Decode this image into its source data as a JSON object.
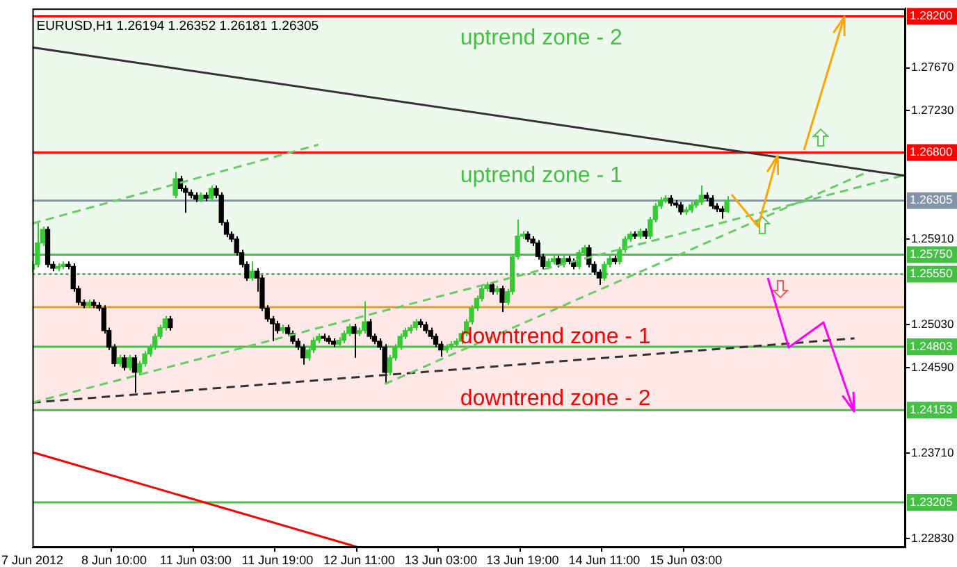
{
  "chart_data": {
    "type": "candlestick",
    "title": "EURUSD,H1 1.26194 1.26352 1.26181 1.26305",
    "categories": [
      "7 Jun 2012",
      null,
      null,
      null,
      null,
      null,
      null,
      null,
      null,
      null,
      null,
      null,
      null,
      null,
      null,
      null,
      "8 Jun 10:00",
      null,
      null,
      null,
      null,
      null,
      null,
      null,
      null,
      null,
      null,
      null,
      null,
      null,
      null,
      null,
      "11 Jun 03:00",
      null,
      null,
      null,
      null,
      null,
      null,
      null,
      null,
      null,
      null,
      null,
      null,
      null,
      null,
      null,
      "11 Jun 19:00",
      null,
      null,
      null,
      null,
      null,
      null,
      null,
      null,
      null,
      null,
      null,
      null,
      null,
      null,
      null,
      "12 Jun 11:00",
      null,
      null,
      null,
      null,
      null,
      null,
      null,
      null,
      null,
      null,
      null,
      null,
      null,
      null,
      null,
      "13 Jun 03:00",
      null,
      null,
      null,
      null,
      null,
      null,
      null,
      null,
      null,
      null,
      null,
      null,
      null,
      null,
      null,
      "13 Jun 19:00",
      null,
      null,
      null,
      null,
      null,
      null,
      null,
      null,
      null,
      null,
      null,
      null,
      null,
      null,
      null,
      "14 Jun 11:00",
      null,
      null,
      null,
      null,
      null,
      null,
      null,
      null,
      null,
      null,
      null,
      null,
      null,
      null,
      null,
      "15 Jun 03:00",
      null,
      null,
      null,
      null,
      null,
      null,
      null,
      null,
      null,
      null,
      null,
      null,
      null,
      null,
      null,
      null,
      null,
      null,
      null,
      null,
      null,
      null,
      null,
      null,
      null,
      null,
      null,
      null,
      null,
      null,
      null,
      null,
      null,
      null,
      null,
      null,
      null,
      null,
      null,
      null,
      null,
      null,
      null
    ],
    "ohlc": [
      [
        1.256,
        1.2568,
        1.2557,
        1.2565
      ],
      [
        1.2565,
        1.2608,
        1.2562,
        1.2587
      ],
      [
        1.2587,
        1.2604,
        1.2584,
        1.2601
      ],
      [
        1.2601,
        1.2604,
        1.2562,
        1.2565
      ],
      [
        1.2565,
        1.2568,
        1.2558,
        1.2561
      ],
      [
        1.2561,
        1.2566,
        1.2558,
        1.2563
      ],
      [
        1.2563,
        1.2568,
        1.256,
        1.2565
      ],
      [
        1.2565,
        1.2568,
        1.256,
        1.2563
      ],
      [
        1.2563,
        1.2566,
        1.2537,
        1.254
      ],
      [
        1.254,
        1.2543,
        1.2523,
        1.2526
      ],
      [
        1.2526,
        1.2529,
        1.252,
        1.2523
      ],
      [
        1.2523,
        1.2529,
        1.252,
        1.2526
      ],
      [
        1.2526,
        1.2529,
        1.252,
        1.2523
      ],
      [
        1.2523,
        1.2526,
        1.2517,
        1.252
      ],
      [
        1.252,
        1.2523,
        1.2494,
        1.2497
      ],
      [
        1.2497,
        1.25,
        1.2477,
        1.248
      ],
      [
        1.248,
        1.2483,
        1.246,
        1.2463
      ],
      [
        1.2463,
        1.2472,
        1.246,
        1.2469
      ],
      [
        1.2469,
        1.2472,
        1.2456,
        1.2459
      ],
      [
        1.2459,
        1.2472,
        1.2456,
        1.2469
      ],
      [
        1.2469,
        1.2472,
        1.2433,
        1.2454
      ],
      [
        1.2454,
        1.2466,
        1.2451,
        1.2463
      ],
      [
        1.2463,
        1.2476,
        1.246,
        1.2473
      ],
      [
        1.2473,
        1.2483,
        1.247,
        1.248
      ],
      [
        1.248,
        1.2494,
        1.2477,
        1.2491
      ],
      [
        1.2491,
        1.2503,
        1.2488,
        1.25
      ],
      [
        1.25,
        1.2512,
        1.2497,
        1.2509
      ],
      [
        1.2509,
        1.2512,
        1.2497,
        1.25
      ],
      [
        1.2636,
        1.266,
        1.2633,
        1.2653
      ],
      [
        1.2653,
        1.2656,
        1.264,
        1.2643
      ],
      [
        1.2643,
        1.2646,
        1.2618,
        1.2639
      ],
      [
        1.2639,
        1.2642,
        1.2633,
        1.2636
      ],
      [
        1.2636,
        1.2639,
        1.2629,
        1.2632
      ],
      [
        1.2632,
        1.2639,
        1.2629,
        1.2636
      ],
      [
        1.2636,
        1.2639,
        1.263,
        1.2633
      ],
      [
        1.2633,
        1.2646,
        1.263,
        1.2643
      ],
      [
        1.2643,
        1.2646,
        1.2633,
        1.2636
      ],
      [
        1.2636,
        1.2639,
        1.2605,
        1.2608
      ],
      [
        1.2608,
        1.2611,
        1.2593,
        1.2596
      ],
      [
        1.2596,
        1.2599,
        1.2588,
        1.2591
      ],
      [
        1.2591,
        1.2594,
        1.2574,
        1.2577
      ],
      [
        1.2577,
        1.258,
        1.2562,
        1.2565
      ],
      [
        1.2565,
        1.2568,
        1.2548,
        1.2551
      ],
      [
        1.2551,
        1.2568,
        1.2548,
        1.2558
      ],
      [
        1.2558,
        1.2561,
        1.2537,
        1.2551
      ],
      [
        1.2551,
        1.2554,
        1.2517,
        1.252
      ],
      [
        1.252,
        1.2523,
        1.2506,
        1.2509
      ],
      [
        1.2509,
        1.2512,
        1.2486,
        1.2504
      ],
      [
        1.2504,
        1.2507,
        1.2494,
        1.2497
      ],
      [
        1.2497,
        1.2503,
        1.2494,
        1.25
      ],
      [
        1.25,
        1.2503,
        1.2491,
        1.2494
      ],
      [
        1.2494,
        1.2497,
        1.2483,
        1.2486
      ],
      [
        1.2486,
        1.2489,
        1.2477,
        1.248
      ],
      [
        1.248,
        1.2483,
        1.2462,
        1.2469
      ],
      [
        1.2469,
        1.248,
        1.2466,
        1.2477
      ],
      [
        1.2477,
        1.249,
        1.2474,
        1.2487
      ],
      [
        1.2487,
        1.2494,
        1.2484,
        1.2491
      ],
      [
        1.2491,
        1.2494,
        1.2486,
        1.2489
      ],
      [
        1.2489,
        1.2492,
        1.2483,
        1.2486
      ],
      [
        1.2486,
        1.2489,
        1.248,
        1.2483
      ],
      [
        1.2483,
        1.249,
        1.248,
        1.2487
      ],
      [
        1.2487,
        1.2497,
        1.2484,
        1.2494
      ],
      [
        1.2494,
        1.2504,
        1.2491,
        1.2501
      ],
      [
        1.2501,
        1.2504,
        1.2469,
        1.2494
      ],
      [
        1.2494,
        1.25,
        1.2491,
        1.2497
      ],
      [
        1.2497,
        1.2527,
        1.2494,
        1.2506
      ],
      [
        1.2506,
        1.2509,
        1.2488,
        1.2491
      ],
      [
        1.2491,
        1.2494,
        1.2483,
        1.2486
      ],
      [
        1.2486,
        1.2489,
        1.2477,
        1.248
      ],
      [
        1.248,
        1.2483,
        1.2442,
        1.2454
      ],
      [
        1.2454,
        1.2472,
        1.2451,
        1.2469
      ],
      [
        1.2469,
        1.2483,
        1.2466,
        1.248
      ],
      [
        1.248,
        1.2494,
        1.2477,
        1.2491
      ],
      [
        1.2491,
        1.25,
        1.2488,
        1.2497
      ],
      [
        1.2497,
        1.2503,
        1.2494,
        1.25
      ],
      [
        1.25,
        1.2509,
        1.2497,
        1.2506
      ],
      [
        1.2506,
        1.2509,
        1.25,
        1.2503
      ],
      [
        1.2503,
        1.2506,
        1.2494,
        1.2497
      ],
      [
        1.2497,
        1.25,
        1.2488,
        1.2491
      ],
      [
        1.2491,
        1.2494,
        1.248,
        1.2483
      ],
      [
        1.2483,
        1.2486,
        1.247,
        1.2477
      ],
      [
        1.2477,
        1.2483,
        1.2474,
        1.248
      ],
      [
        1.248,
        1.2486,
        1.2477,
        1.2483
      ],
      [
        1.2483,
        1.2489,
        1.248,
        1.2486
      ],
      [
        1.2486,
        1.2497,
        1.2483,
        1.2494
      ],
      [
        1.2494,
        1.2509,
        1.2491,
        1.2506
      ],
      [
        1.2506,
        1.2523,
        1.2503,
        1.252
      ],
      [
        1.252,
        1.2533,
        1.2517,
        1.253
      ],
      [
        1.253,
        1.2543,
        1.2527,
        1.254
      ],
      [
        1.254,
        1.2547,
        1.2537,
        1.2544
      ],
      [
        1.2544,
        1.2547,
        1.2534,
        1.2537
      ],
      [
        1.2537,
        1.2543,
        1.2534,
        1.254
      ],
      [
        1.254,
        1.2543,
        1.2516,
        1.2526
      ],
      [
        1.2526,
        1.254,
        1.2523,
        1.2537
      ],
      [
        1.2537,
        1.2576,
        1.2534,
        1.2573
      ],
      [
        1.2573,
        1.2611,
        1.257,
        1.2594
      ],
      [
        1.2594,
        1.2599,
        1.2591,
        1.2596
      ],
      [
        1.2596,
        1.2599,
        1.2588,
        1.2591
      ],
      [
        1.2591,
        1.2594,
        1.2584,
        1.2587
      ],
      [
        1.2587,
        1.259,
        1.257,
        1.2573
      ],
      [
        1.2573,
        1.2576,
        1.256,
        1.2563
      ],
      [
        1.2563,
        1.2571,
        1.256,
        1.2568
      ],
      [
        1.2568,
        1.2574,
        1.2565,
        1.2571
      ],
      [
        1.2571,
        1.2574,
        1.2562,
        1.2565
      ],
      [
        1.2565,
        1.2574,
        1.2562,
        1.2571
      ],
      [
        1.2571,
        1.2574,
        1.2565,
        1.2568
      ],
      [
        1.2568,
        1.2571,
        1.256,
        1.2563
      ],
      [
        1.2563,
        1.258,
        1.256,
        1.2577
      ],
      [
        1.2577,
        1.2585,
        1.2574,
        1.2582
      ],
      [
        1.2582,
        1.2585,
        1.2562,
        1.2565
      ],
      [
        1.2565,
        1.2568,
        1.2554,
        1.2557
      ],
      [
        1.2557,
        1.256,
        1.2544,
        1.2551
      ],
      [
        1.2551,
        1.2568,
        1.2548,
        1.2565
      ],
      [
        1.2565,
        1.2574,
        1.2562,
        1.2571
      ],
      [
        1.2571,
        1.2574,
        1.2565,
        1.2568
      ],
      [
        1.2568,
        1.2583,
        1.2565,
        1.258
      ],
      [
        1.258,
        1.2594,
        1.2577,
        1.2591
      ],
      [
        1.2591,
        1.2599,
        1.2588,
        1.2596
      ],
      [
        1.2596,
        1.2599,
        1.2591,
        1.2594
      ],
      [
        1.2594,
        1.2602,
        1.2591,
        1.2599
      ],
      [
        1.2599,
        1.2602,
        1.2591,
        1.2594
      ],
      [
        1.2594,
        1.2614,
        1.2591,
        1.2611
      ],
      [
        1.2611,
        1.2628,
        1.2608,
        1.2625
      ],
      [
        1.2625,
        1.2634,
        1.2622,
        1.2631
      ],
      [
        1.2631,
        1.2636,
        1.2628,
        1.2633
      ],
      [
        1.2633,
        1.2636,
        1.2625,
        1.2628
      ],
      [
        1.2628,
        1.2631,
        1.2623,
        1.2626
      ],
      [
        1.2626,
        1.2629,
        1.2616,
        1.2619
      ],
      [
        1.2619,
        1.2624,
        1.2616,
        1.2621
      ],
      [
        1.2621,
        1.2629,
        1.2618,
        1.2626
      ],
      [
        1.2626,
        1.2632,
        1.2623,
        1.2629
      ],
      [
        1.2629,
        1.2646,
        1.2626,
        1.2636
      ],
      [
        1.2636,
        1.2639,
        1.263,
        1.2633
      ],
      [
        1.2633,
        1.2636,
        1.2622,
        1.2625
      ],
      [
        1.2625,
        1.2628,
        1.2619,
        1.2622
      ],
      [
        1.2622,
        1.2625,
        1.2612,
        1.26194
      ],
      [
        1.26194,
        1.26352,
        1.26181,
        1.26305
      ],
      null,
      null,
      null,
      null,
      null,
      null,
      null,
      null,
      null,
      null,
      null,
      null,
      null,
      null,
      null,
      null,
      null,
      null,
      null,
      null,
      null,
      null,
      null,
      null,
      null,
      null,
      null,
      null,
      null,
      null,
      null,
      null,
      null,
      null,
      null
    ],
    "series": [
      {
        "type": "line",
        "color": "#333333",
        "line_style": "solid",
        "values": [
          1.2788,
          null,
          null,
          null,
          null,
          null,
          null,
          null,
          null,
          null,
          null,
          null,
          null,
          null,
          null,
          null,
          null,
          null,
          null,
          null,
          null,
          null,
          null,
          null,
          null,
          null,
          null,
          null,
          null,
          null,
          null,
          null,
          null,
          null,
          null,
          null,
          null,
          null,
          null,
          null,
          null,
          null,
          null,
          null,
          null,
          null,
          null,
          null,
          null,
          null,
          null,
          null,
          null,
          null,
          null,
          null,
          null,
          null,
          null,
          null,
          null,
          null,
          null,
          null,
          null,
          null,
          null,
          null,
          null,
          null,
          null,
          null,
          null,
          null,
          null,
          null,
          null,
          null,
          null,
          null,
          null,
          null,
          null,
          null,
          null,
          null,
          null,
          null,
          null,
          null,
          null,
          null,
          null,
          null,
          null,
          null,
          null,
          null,
          null,
          null,
          null,
          null,
          null,
          null,
          null,
          null,
          null,
          null,
          null,
          null,
          null,
          null,
          null,
          null,
          null,
          null,
          null,
          null,
          null,
          null,
          null,
          null,
          null,
          null,
          null,
          null,
          null,
          null,
          null,
          null,
          null,
          null,
          null,
          null,
          null,
          null,
          null,
          null,
          null,
          null,
          null,
          null,
          null,
          null,
          null,
          null,
          null,
          null,
          null,
          null,
          null,
          null,
          null,
          null,
          null,
          null,
          null,
          null,
          null,
          null,
          null,
          null,
          null,
          null,
          null,
          null,
          null,
          null,
          null,
          null,
          null,
          1.2656
        ]
      },
      {
        "type": "line",
        "color": "#66cc66",
        "line_style": "dashed",
        "values": [
          1.2607,
          null,
          null,
          null,
          null,
          null,
          null,
          null,
          null,
          null,
          null,
          null,
          null,
          null,
          null,
          null,
          null,
          null,
          null,
          null,
          null,
          null,
          null,
          null,
          null,
          null,
          null,
          null,
          null,
          null,
          null,
          null,
          null,
          null,
          null,
          null,
          null,
          null,
          null,
          null,
          null,
          null,
          null,
          null,
          null,
          null,
          null,
          null,
          null,
          null,
          null,
          null,
          null,
          null,
          null,
          null,
          1.2688,
          null,
          null,
          null,
          null,
          null,
          null,
          null,
          null,
          null,
          null,
          null,
          null,
          null,
          null,
          null,
          null,
          null,
          null,
          null,
          null,
          null,
          null,
          null,
          null,
          null,
          null,
          null,
          null,
          null,
          null,
          null,
          null,
          null,
          null,
          null,
          null,
          null,
          null,
          null,
          null,
          null,
          null,
          null,
          null,
          null,
          null,
          null,
          null,
          null,
          null,
          null,
          null,
          null,
          null,
          null,
          null,
          null,
          null,
          null,
          null,
          null,
          null,
          null,
          null,
          null,
          null,
          null,
          null,
          null,
          null,
          null,
          null,
          null,
          null,
          null,
          null,
          null,
          null,
          null,
          null,
          null,
          null,
          null,
          null,
          null,
          null,
          null,
          null,
          null,
          null,
          null,
          null,
          null,
          null,
          null,
          null,
          null,
          null,
          null,
          null,
          null,
          null,
          null,
          null,
          null,
          null,
          null,
          null,
          null,
          null,
          null,
          null,
          null,
          null,
          null
        ]
      },
      {
        "type": "line",
        "color": "#66cc66",
        "line_style": "dashed",
        "values": [
          1.2423,
          null,
          null,
          null,
          null,
          null,
          null,
          null,
          null,
          null,
          null,
          null,
          null,
          null,
          null,
          null,
          null,
          null,
          null,
          null,
          null,
          null,
          null,
          null,
          null,
          null,
          null,
          null,
          null,
          null,
          null,
          null,
          null,
          null,
          null,
          null,
          null,
          null,
          null,
          null,
          null,
          null,
          null,
          null,
          null,
          null,
          null,
          null,
          null,
          null,
          null,
          null,
          null,
          null,
          null,
          null,
          null,
          null,
          null,
          null,
          null,
          null,
          null,
          null,
          null,
          null,
          null,
          null,
          null,
          null,
          null,
          null,
          null,
          null,
          null,
          null,
          null,
          null,
          null,
          null,
          null,
          null,
          null,
          null,
          null,
          null,
          null,
          null,
          null,
          null,
          null,
          null,
          null,
          null,
          null,
          null,
          null,
          null,
          null,
          null,
          null,
          null,
          null,
          null,
          null,
          null,
          null,
          null,
          null,
          null,
          null,
          null,
          null,
          null,
          null,
          null,
          null,
          null,
          null,
          null,
          null,
          null,
          null,
          null,
          null,
          null,
          null,
          null,
          null,
          null,
          null,
          null,
          null,
          null,
          null,
          null,
          null,
          null,
          null,
          null,
          null,
          null,
          null,
          null,
          null,
          null,
          null,
          null,
          null,
          null,
          null,
          null,
          null,
          null,
          null,
          null,
          null,
          null,
          null,
          null,
          null,
          null,
          null,
          null,
          null,
          null,
          null,
          null,
          null,
          null,
          null,
          1.2657
        ]
      },
      {
        "type": "line",
        "color": "#66cc66",
        "line_style": "dashed",
        "values": [
          null,
          null,
          null,
          null,
          null,
          null,
          null,
          null,
          null,
          null,
          null,
          null,
          null,
          null,
          null,
          null,
          null,
          null,
          null,
          null,
          null,
          null,
          null,
          null,
          null,
          null,
          null,
          null,
          null,
          null,
          null,
          null,
          null,
          null,
          null,
          null,
          null,
          null,
          null,
          null,
          null,
          null,
          null,
          null,
          null,
          null,
          null,
          null,
          null,
          null,
          null,
          null,
          null,
          null,
          null,
          null,
          null,
          null,
          null,
          null,
          null,
          null,
          null,
          null,
          null,
          null,
          null,
          null,
          null,
          1.2442,
          null,
          null,
          null,
          null,
          null,
          null,
          null,
          null,
          null,
          null,
          null,
          null,
          null,
          null,
          null,
          null,
          null,
          null,
          null,
          null,
          null,
          null,
          null,
          null,
          null,
          null,
          null,
          null,
          null,
          null,
          null,
          null,
          null,
          null,
          null,
          null,
          null,
          null,
          null,
          null,
          null,
          null,
          null,
          null,
          null,
          null,
          null,
          null,
          null,
          null,
          null,
          null,
          null,
          null,
          null,
          null,
          null,
          null,
          null,
          null,
          null,
          null,
          null,
          null,
          null,
          null,
          null,
          null,
          null,
          null,
          null,
          null,
          null,
          null,
          null,
          null,
          null,
          null,
          null,
          null,
          null,
          null,
          null,
          null,
          null,
          null,
          null,
          null,
          null,
          null,
          null,
          null,
          null,
          null,
          1.2661,
          null,
          null,
          null,
          null,
          null,
          null,
          null
        ]
      },
      {
        "type": "line",
        "color": "#333333",
        "line_style": "dashed",
        "values": [
          1.2423,
          null,
          null,
          null,
          null,
          null,
          null,
          null,
          null,
          null,
          null,
          null,
          null,
          null,
          null,
          null,
          null,
          null,
          null,
          null,
          null,
          null,
          null,
          null,
          null,
          null,
          null,
          null,
          null,
          null,
          null,
          null,
          null,
          null,
          null,
          null,
          null,
          null,
          null,
          null,
          null,
          null,
          null,
          null,
          null,
          null,
          null,
          null,
          null,
          null,
          null,
          null,
          null,
          null,
          null,
          null,
          null,
          null,
          null,
          null,
          null,
          null,
          null,
          null,
          null,
          null,
          null,
          null,
          null,
          null,
          null,
          null,
          null,
          null,
          null,
          null,
          null,
          null,
          null,
          null,
          null,
          null,
          null,
          null,
          null,
          null,
          null,
          null,
          null,
          null,
          null,
          null,
          null,
          null,
          null,
          null,
          null,
          null,
          null,
          null,
          null,
          null,
          null,
          null,
          null,
          null,
          null,
          null,
          null,
          null,
          null,
          null,
          null,
          null,
          null,
          null,
          null,
          null,
          null,
          null,
          null,
          null,
          null,
          null,
          null,
          null,
          null,
          null,
          null,
          null,
          null,
          null,
          null,
          null,
          null,
          null,
          null,
          null,
          null,
          null,
          null,
          null,
          null,
          null,
          null,
          null,
          null,
          null,
          null,
          null,
          null,
          null,
          null,
          null,
          null,
          null,
          null,
          null,
          null,
          null,
          null,
          1.2489,
          null,
          null,
          null,
          null,
          null,
          null,
          null,
          null,
          null,
          null
        ]
      },
      {
        "type": "line",
        "color": "#ff0000",
        "line_style": "solid",
        "values": [
          1.2372,
          null,
          null,
          null,
          null,
          null,
          null,
          null,
          null,
          null,
          null,
          null,
          null,
          null,
          null,
          null,
          null,
          null,
          null,
          null,
          null,
          null,
          null,
          null,
          null,
          null,
          null,
          null,
          null,
          null,
          null,
          null,
          null,
          null,
          null,
          null,
          null,
          null,
          null,
          null,
          null,
          null,
          null,
          null,
          null,
          null,
          null,
          null,
          null,
          null,
          null,
          null,
          null,
          null,
          null,
          null,
          null,
          null,
          null,
          null,
          null,
          null,
          null,
          null,
          1.2274,
          null,
          null,
          null,
          null,
          null,
          null,
          null,
          null,
          null,
          null,
          null,
          null,
          null,
          null,
          null,
          null,
          null,
          null,
          null,
          null,
          null,
          null,
          null,
          null,
          null,
          null,
          null,
          null,
          null,
          null,
          null,
          null,
          null,
          null,
          null,
          null,
          null,
          null,
          null,
          null,
          null,
          null,
          null,
          null,
          null,
          null,
          null,
          null,
          null,
          null,
          null,
          null,
          null,
          null,
          null,
          null,
          null,
          null,
          null,
          null,
          null,
          null,
          null,
          null,
          null,
          null,
          null,
          null,
          null,
          null,
          null,
          null,
          null,
          null,
          null,
          null,
          null,
          null,
          null,
          null,
          null,
          null,
          null,
          null,
          null,
          null,
          null,
          null,
          null,
          null,
          null,
          null,
          null,
          null,
          null,
          null,
          null,
          null,
          null,
          null,
          null,
          null,
          null,
          null,
          null,
          null,
          null
        ]
      }
    ],
    "ylim": [
      1.2274,
      1.2828
    ],
    "yticks": [
      {
        "value": 1.2767,
        "label": "1.27670"
      },
      {
        "value": 1.2723,
        "label": "1.27230"
      },
      {
        "value": 1.2591,
        "label": "1.25910"
      },
      {
        "value": 1.2503,
        "label": "1.25030"
      },
      {
        "value": 1.2459,
        "label": "1.24590"
      },
      {
        "value": 1.2371,
        "label": "1.23710"
      },
      {
        "value": 1.2283,
        "label": "1.22830"
      }
    ],
    "ref_lines": [
      {
        "axis": "y",
        "value": 1.282,
        "label": "1.28200",
        "color": "#ff0000"
      },
      {
        "axis": "y",
        "value": 1.268,
        "label": "1.26800",
        "color": "#ff0000"
      },
      {
        "axis": "y",
        "value": 1.26305,
        "label": "1.26305",
        "color": "#8494a8"
      },
      {
        "axis": "y",
        "value": 1.2575,
        "label": "1.25750",
        "color": "#44c044"
      },
      {
        "axis": "y",
        "value": 1.2555,
        "label": "1.25550",
        "color": "#44c044",
        "line_style": "dotted"
      },
      {
        "axis": "y",
        "value": 1.24803,
        "label": "1.24803",
        "color": "#44c044"
      },
      {
        "axis": "y",
        "value": 1.24153,
        "label": "1.24153",
        "color": "#44c044"
      },
      {
        "axis": "y",
        "value": 1.23205,
        "label": "1.23205",
        "color": "#44c044"
      },
      {
        "axis": "y",
        "value": 1.2521,
        "color": "#dca030"
      }
    ],
    "bands": [
      {
        "axis": "y",
        "from": 1.2575,
        "to": 1.282,
        "color": "#44c044"
      },
      {
        "axis": "y",
        "from": 1.24153,
        "to": 1.2555,
        "color": "#ff0000"
      }
    ],
    "annotations": [
      "uptrend zone - 2",
      "uptrend zone - 1",
      "downtrend zone - 1",
      "downtrend zone - 2"
    ],
    "legend": false,
    "grid": false
  }
}
